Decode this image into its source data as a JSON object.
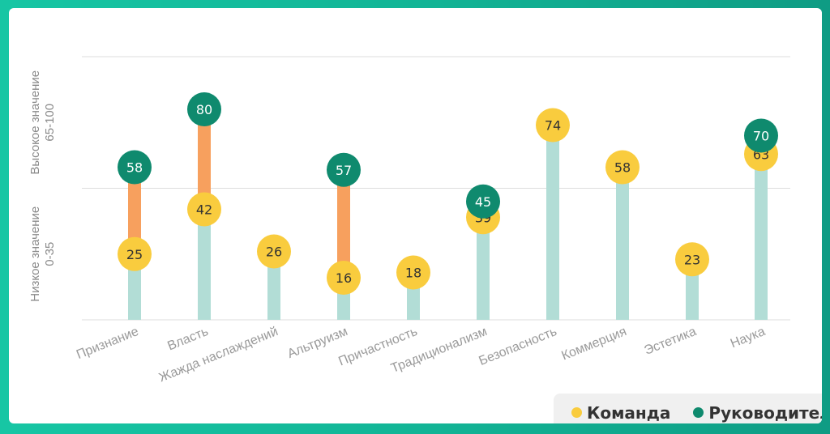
{
  "chart_data": {
    "type": "dot-line",
    "categories": [
      "Признание",
      "Власть",
      "Жажда наслаждений",
      "Альтруизм",
      "Причастность",
      "Традиционализм",
      "Безопасность",
      "Коммерция",
      "Эстетика",
      "Наука"
    ],
    "series": [
      {
        "name": "Команда",
        "values": [
          25,
          42,
          26,
          16,
          18,
          39,
          74,
          58,
          23,
          63
        ]
      },
      {
        "name": "Руководитель",
        "values": [
          58,
          80,
          null,
          57,
          null,
          45,
          null,
          null,
          null,
          70
        ]
      }
    ],
    "ylim": [
      0,
      100
    ],
    "y_band_labels": [
      {
        "line1": "Низкое значение",
        "line2": "0-35"
      },
      {
        "line1": "Высокое значение",
        "line2": "65-100"
      }
    ],
    "colors": {
      "team": "#f9cc3e",
      "leader": "#0f8a6e",
      "stem": "#b2ddd6",
      "gap": "#f7a05e",
      "grid": "#dcdcdc"
    }
  }
}
